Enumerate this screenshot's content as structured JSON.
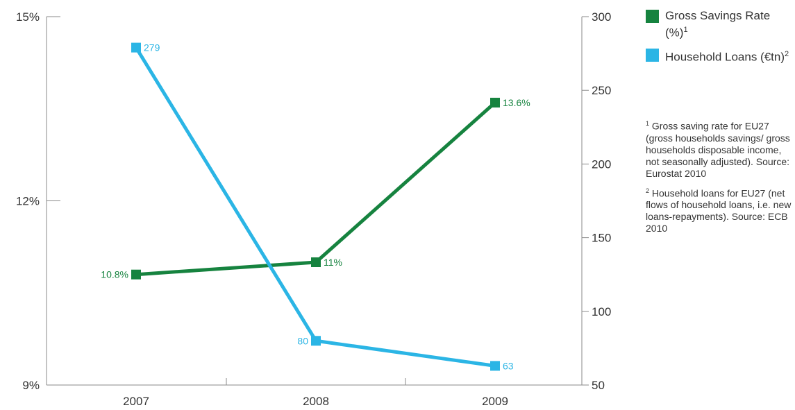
{
  "chart_data": {
    "type": "line",
    "categories": [
      "2007",
      "2008",
      "2009"
    ],
    "series": [
      {
        "name": "Gross Savings Rate (%)",
        "axis": "left",
        "color": "#16833f",
        "values": [
          10.8,
          11.0,
          13.6
        ],
        "labels": [
          "10.8%",
          "11%",
          "13.6%"
        ]
      },
      {
        "name": "Household Loans (€tn)",
        "axis": "right",
        "color": "#2bb5e5",
        "values": [
          279,
          80,
          63
        ],
        "labels": [
          "279",
          "80",
          "63"
        ]
      }
    ],
    "y_left": {
      "ylim": [
        9,
        15
      ],
      "ticks": [
        9,
        12,
        15
      ],
      "tick_labels": [
        "9%",
        "12%",
        "15%"
      ]
    },
    "y_right": {
      "ylim": [
        50,
        300
      ],
      "ticks": [
        50,
        100,
        150,
        200,
        250,
        300
      ],
      "tick_labels": [
        "50",
        "100",
        "150",
        "200",
        "250",
        "300"
      ]
    },
    "grid": false,
    "legend_position": "top-right"
  },
  "legend": [
    {
      "color": "#16833f",
      "label": "Gross Savings Rate (%)",
      "sup": "1"
    },
    {
      "color": "#2bb5e5",
      "label": "Household Loans (€tn)",
      "sup": "2"
    }
  ],
  "notes": [
    {
      "sup": "1",
      "text": " Gross saving rate for EU27 (gross households savings/ gross households disposable income, not seasonally adjusted). Source: Eurostat 2010"
    },
    {
      "sup": "2",
      "text": " Household loans for EU27 (net flows of household loans, i.e. new loans-repayments). Source: ECB 2010"
    }
  ]
}
